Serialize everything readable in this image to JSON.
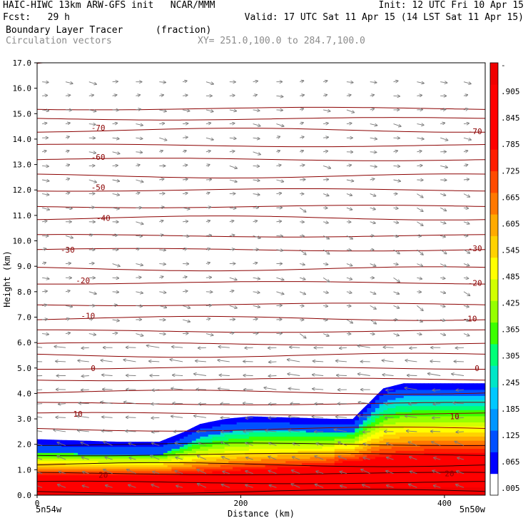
{
  "header": {
    "line1_left": "HAIC-HIWC 13km ARW-GFS init   NCAR/MMM",
    "line1_right": "Init: 12 UTC Fri 10 Apr 15",
    "line2_left": "Fcst:   29 h",
    "line2_right": "Valid: 17 UTC Sat 11 Apr 15 (14 LST Sat 11 Apr 15)",
    "field_name": "Boundary Layer Tracer",
    "field_units": "(fraction)",
    "overlay_name": "Circulation vectors",
    "cross_section": "XY= 251.0,100.0 to 284.7,100.0"
  },
  "chart_data": {
    "type": "heatmap",
    "title": "Boundary Layer Tracer",
    "units": "(fraction)",
    "xlabel": "Distance (km)",
    "ylabel": "Height (km)",
    "xlim": [
      0,
      440
    ],
    "ylim": [
      0,
      17
    ],
    "x_ticks": [
      0,
      200,
      400
    ],
    "y_ticks": [
      "0.0",
      "1.0",
      "2.0",
      "3.0",
      "4.0",
      "5.0",
      "6.0",
      "7.0",
      "8.0",
      "9.0",
      "10.0",
      "11.0",
      "12.0",
      "13.0",
      "14.0",
      "15.0",
      "16.0",
      "17.0"
    ],
    "x_end_labels": {
      "left": "5n54w",
      "right": "5n50w"
    },
    "tracer_top_km": {
      "x": [
        0,
        80,
        120,
        145,
        160,
        185,
        210,
        250,
        290,
        310,
        325,
        340,
        360,
        400,
        440
      ],
      "z": [
        2.2,
        2.1,
        2.1,
        2.5,
        2.8,
        3.0,
        3.1,
        3.05,
        3.0,
        3.0,
        3.6,
        4.2,
        4.4,
        4.4,
        4.4
      ]
    },
    "colorbar": {
      "labels": [
        ".005",
        ".065",
        ".125",
        ".185",
        ".245",
        ".305",
        ".365",
        ".425",
        ".485",
        ".545",
        ".605",
        ".665",
        ".725",
        ".785",
        ".845",
        ".905",
        "-"
      ],
      "colors": [
        "#ffffff",
        "#0000ff",
        "#0050ff",
        "#0096ff",
        "#00c8ff",
        "#00e6c8",
        "#00ff78",
        "#3cff00",
        "#96ff00",
        "#d2ff00",
        "#ffff00",
        "#ffd200",
        "#ffaa00",
        "#ff7800",
        "#ff4b00",
        "#ff1e00",
        "#ff0000",
        "#ff0000",
        "#ff0000",
        "#f00000"
      ]
    },
    "temperature_contours": {
      "color": "#8b0000",
      "labels": [
        {
          "text": "-70",
          "x": 60,
          "z": 14.45
        },
        {
          "text": "-70",
          "x": 430,
          "z": 14.3
        },
        {
          "text": "-60",
          "x": 60,
          "z": 13.3
        },
        {
          "text": "-50",
          "x": 60,
          "z": 12.1
        },
        {
          "text": "-40",
          "x": 65,
          "z": 10.9
        },
        {
          "text": "-30",
          "x": 30,
          "z": 9.65
        },
        {
          "text": "-30",
          "x": 430,
          "z": 9.7
        },
        {
          "text": "-20",
          "x": 45,
          "z": 8.45
        },
        {
          "text": "-20",
          "x": 430,
          "z": 8.35
        },
        {
          "text": "-10",
          "x": 50,
          "z": 7.05
        },
        {
          "text": "-10",
          "x": 425,
          "z": 6.95
        },
        {
          "text": "0",
          "x": 55,
          "z": 5.0
        },
        {
          "text": "0",
          "x": 432,
          "z": 5.0
        },
        {
          "text": "10",
          "x": 40,
          "z": 3.2
        },
        {
          "text": "10",
          "x": 410,
          "z": 3.1
        },
        {
          "text": "20",
          "x": 65,
          "z": 0.8
        },
        {
          "text": "20",
          "x": 405,
          "z": 0.85
        }
      ]
    },
    "grid": false
  }
}
